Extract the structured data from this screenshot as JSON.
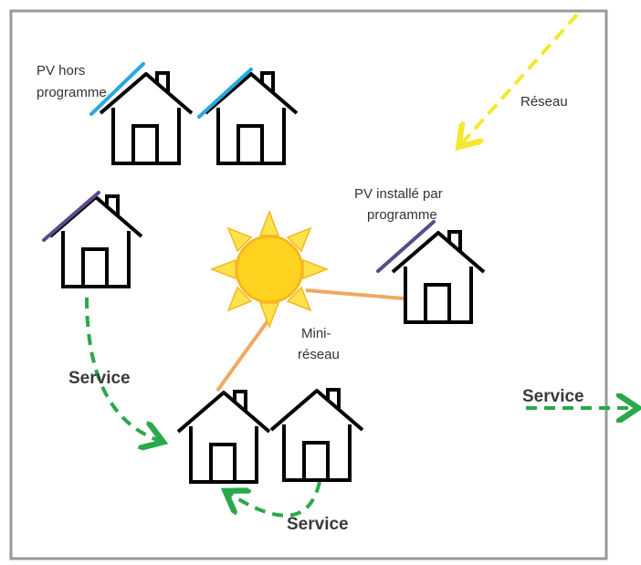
{
  "labels": {
    "pv_hors_programme": [
      "PV hors",
      "programme"
    ],
    "reseau": "Réseau",
    "pv_installe": [
      "PV installé par",
      "programme"
    ],
    "mini_reseau": [
      "Mini-",
      "réseau"
    ],
    "service": [
      "Service",
      "Service",
      "Service"
    ]
  }
}
